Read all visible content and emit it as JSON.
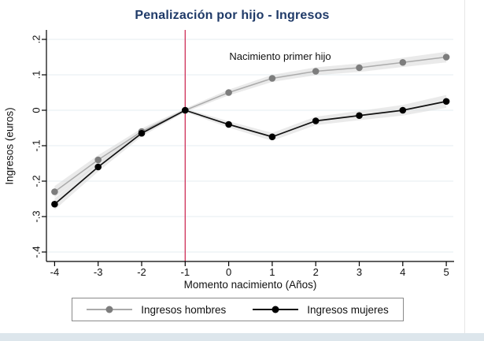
{
  "title": "Penalización por hijo - Ingresos",
  "annotation": "Nacimiento primer hijo",
  "x_axis": {
    "label": "Momento nacimiento (Años)",
    "ticks": [
      -4,
      -3,
      -2,
      -1,
      0,
      1,
      2,
      3,
      4,
      5
    ]
  },
  "y_axis": {
    "label": "Ingresos (euros)",
    "ticks": [
      0.2,
      0.1,
      0,
      -0.1,
      -0.2,
      -0.3,
      -0.4
    ],
    "tick_labels": [
      ".2",
      ".1",
      "0",
      "-.1",
      "-.2",
      "-.3",
      "-.4"
    ]
  },
  "legend": [
    {
      "label": "Ingresos hombres",
      "line_color": "#ababab",
      "dot_color": "#7d7d7d"
    },
    {
      "label": "Ingresos mujeres",
      "line_color": "#111111",
      "dot_color": "#000000"
    }
  ],
  "colors": {
    "grid": "#e4eef1",
    "band": "#d8d8d8",
    "vline": "#cf3059",
    "title": "#1f3a68",
    "axis": "#000000"
  },
  "chart_data": {
    "type": "line",
    "title": "Penalización por hijo - Ingresos",
    "xlabel": "Momento nacimiento (Años)",
    "ylabel": "Ingresos (euros)",
    "x": [
      -4,
      -3,
      -2,
      -1,
      0,
      1,
      2,
      3,
      4,
      5
    ],
    "series": [
      {
        "name": "Ingresos hombres",
        "color": "#7d7d7d",
        "line_color": "#ababab",
        "values": [
          -0.23,
          -0.14,
          -0.06,
          0,
          0.05,
          0.09,
          0.11,
          0.12,
          0.135,
          0.15
        ],
        "ci": [
          0.016,
          0.013,
          0.009,
          0.005,
          0.008,
          0.01,
          0.011,
          0.012,
          0.013,
          0.015
        ]
      },
      {
        "name": "Ingresos mujeres",
        "color": "#000000",
        "line_color": "#111111",
        "values": [
          -0.265,
          -0.16,
          -0.065,
          0,
          -0.04,
          -0.075,
          -0.03,
          -0.015,
          0,
          0.025
        ],
        "ci": [
          0.016,
          0.013,
          0.009,
          0.005,
          0.009,
          0.011,
          0.012,
          0.013,
          0.015,
          0.018
        ]
      }
    ],
    "vline": {
      "x": -1,
      "color": "#cf3059",
      "label": "Nacimiento primer hijo"
    },
    "xlim": [
      -4.2,
      5.2
    ],
    "ylim": [
      -0.43,
      0.225
    ],
    "grid": true,
    "legend_position": "bottom"
  }
}
